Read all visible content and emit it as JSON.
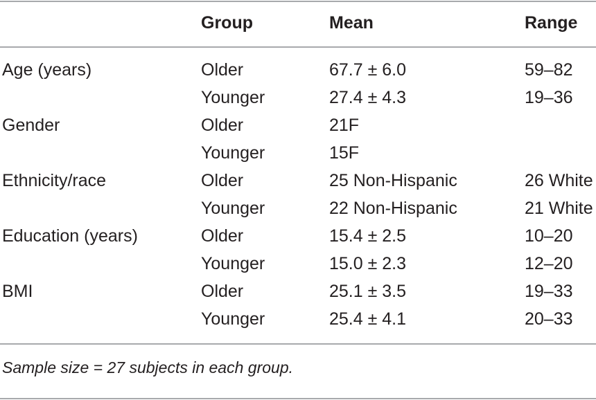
{
  "table": {
    "headers": {
      "label": "",
      "group": "Group",
      "mean": "Mean",
      "range": "Range"
    },
    "rows": [
      {
        "label": "Age (years)",
        "group": "Older",
        "mean": "67.7 ± 6.0",
        "range": "59–82"
      },
      {
        "label": "",
        "group": "Younger",
        "mean": "27.4 ± 4.3",
        "range": "19–36"
      },
      {
        "label": "Gender",
        "group": "Older",
        "mean": "21F",
        "range": ""
      },
      {
        "label": "",
        "group": "Younger",
        "mean": "15F",
        "range": ""
      },
      {
        "label": "Ethnicity/race",
        "group": "Older",
        "mean": "25 Non-Hispanic",
        "range": "26 White"
      },
      {
        "label": "",
        "group": "Younger",
        "mean": "22 Non-Hispanic",
        "range": "21 White"
      },
      {
        "label": "Education (years)",
        "group": "Older",
        "mean": "15.4 ± 2.5",
        "range": "10–20"
      },
      {
        "label": "",
        "group": "Younger",
        "mean": "15.0 ± 2.3",
        "range": "12–20"
      },
      {
        "label": "BMI",
        "group": "Older",
        "mean": "25.1 ± 3.5",
        "range": "19–33"
      },
      {
        "label": "",
        "group": "Younger",
        "mean": "25.4 ± 4.1",
        "range": "20–33"
      }
    ],
    "footnote": "Sample size = 27 subjects in each group."
  },
  "colors": {
    "text": "#231f20",
    "rule": "#a7a9ac",
    "background": "#ffffff"
  }
}
